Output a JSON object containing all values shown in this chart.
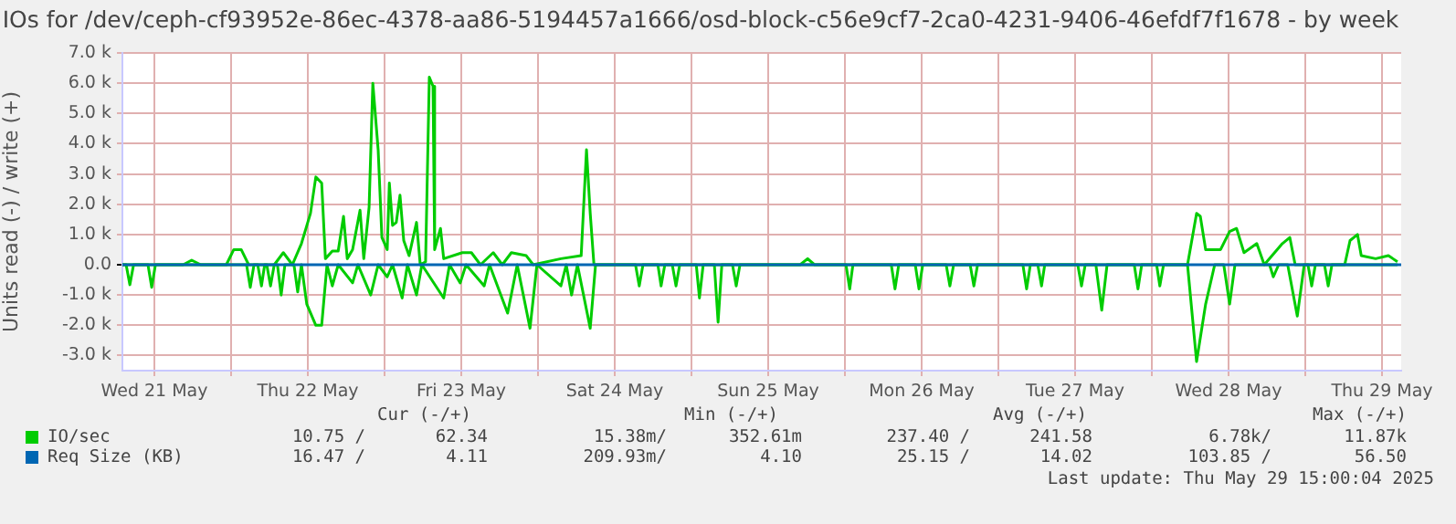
{
  "chart_data": {
    "type": "line",
    "title": "IOs for /dev/ceph-cf93952e-86ec-4378-aa86-5194457a1666/osd-block-c56e9cf7-2ca0-4231-9406-46efdf7f1678 - by week",
    "ylabel": "Units read (-) / write (+)",
    "xlim": [
      "2025-05-21T07:00",
      "2025-05-29T15:00"
    ],
    "xticks": [
      {
        "value": "2025-05-21T12:00",
        "label": "Wed 21 May"
      },
      {
        "value": "2025-05-22T00:00",
        "label": null
      },
      {
        "value": "2025-05-22T12:00",
        "label": "Thu 22 May"
      },
      {
        "value": "2025-05-23T00:00",
        "label": null
      },
      {
        "value": "2025-05-23T12:00",
        "label": "Fri 23 May"
      },
      {
        "value": "2025-05-24T00:00",
        "label": null
      },
      {
        "value": "2025-05-24T12:00",
        "label": "Sat 24 May"
      },
      {
        "value": "2025-05-25T00:00",
        "label": null
      },
      {
        "value": "2025-05-25T12:00",
        "label": "Sun 25 May"
      },
      {
        "value": "2025-05-26T00:00",
        "label": null
      },
      {
        "value": "2025-05-26T12:00",
        "label": "Mon 26 May"
      },
      {
        "value": "2025-05-27T00:00",
        "label": null
      },
      {
        "value": "2025-05-27T12:00",
        "label": "Tue 27 May"
      },
      {
        "value": "2025-05-28T00:00",
        "label": null
      },
      {
        "value": "2025-05-28T12:00",
        "label": "Wed 28 May"
      },
      {
        "value": "2025-05-29T00:00",
        "label": null
      },
      {
        "value": "2025-05-29T12:00",
        "label": "Thu 29 May"
      }
    ],
    "ylim": [
      -3500,
      7000
    ],
    "yticks": [
      {
        "value": -3000,
        "label": "-3.0 k"
      },
      {
        "value": -2000,
        "label": "-2.0 k"
      },
      {
        "value": -1000,
        "label": "-1.0 k"
      },
      {
        "value": 0,
        "label": "0.0"
      },
      {
        "value": 1000,
        "label": "1.0 k"
      },
      {
        "value": 2000,
        "label": "2.0 k"
      },
      {
        "value": 3000,
        "label": "3.0 k"
      },
      {
        "value": 4000,
        "label": "4.0 k"
      },
      {
        "value": 5000,
        "label": "5.0 k"
      },
      {
        "value": 6000,
        "label": "6.0 k"
      },
      {
        "value": 7000,
        "label": "7.0 k"
      }
    ],
    "grid": true,
    "legend": "bottom",
    "marker": "none",
    "line_style": "solid",
    "series": [
      {
        "name": "IO/sec",
        "color": "#00cc00",
        "x": [
          "2025-05-21T07:00",
          "2025-05-21T16:30",
          "2025-05-21T17:50",
          "2025-05-21T19:15",
          "2025-05-21T23:15",
          "2025-05-22T00:25",
          "2025-05-22T01:35",
          "2025-05-22T02:45",
          "2025-05-22T06:45",
          "2025-05-22T08:10",
          "2025-05-22T09:35",
          "2025-05-22T11:00",
          "2025-05-22T12:25",
          "2025-05-22T13:15",
          "2025-05-22T14:10",
          "2025-05-22T14:45",
          "2025-05-22T15:50",
          "2025-05-22T16:45",
          "2025-05-22T17:35",
          "2025-05-22T18:10",
          "2025-05-22T19:00",
          "2025-05-22T20:10",
          "2025-05-22T20:45",
          "2025-05-22T21:35",
          "2025-05-22T22:10",
          "2025-05-22T23:00",
          "2025-05-22T23:35",
          "2025-05-23T00:25",
          "2025-05-23T00:45",
          "2025-05-23T01:15",
          "2025-05-23T01:50",
          "2025-05-23T02:25",
          "2025-05-23T03:00",
          "2025-05-23T03:50",
          "2025-05-23T05:00",
          "2025-05-23T05:35",
          "2025-05-23T06:25",
          "2025-05-23T07:00",
          "2025-05-23T07:35",
          "2025-05-23T07:50",
          "2025-05-23T08:45",
          "2025-05-23T09:15",
          "2025-05-23T12:10",
          "2025-05-23T13:35",
          "2025-05-23T15:00",
          "2025-05-23T17:00",
          "2025-05-23T18:25",
          "2025-05-23T19:50",
          "2025-05-23T22:10",
          "2025-05-23T23:15",
          "2025-05-24T03:35",
          "2025-05-24T06:45",
          "2025-05-24T07:35",
          "2025-05-24T08:10",
          "2025-05-24T08:45",
          "2025-05-25T17:00",
          "2025-05-25T18:10",
          "2025-05-25T19:15",
          "2025-05-28T05:35",
          "2025-05-28T07:00",
          "2025-05-28T07:35",
          "2025-05-28T08:25",
          "2025-05-28T10:45",
          "2025-05-28T12:10",
          "2025-05-28T13:15",
          "2025-05-28T14:25",
          "2025-05-28T16:25",
          "2025-05-28T17:35",
          "2025-05-28T20:25",
          "2025-05-28T21:35",
          "2025-05-28T22:25",
          "2025-05-29T06:10",
          "2025-05-29T07:00",
          "2025-05-29T08:10",
          "2025-05-29T08:45",
          "2025-05-29T11:00",
          "2025-05-29T13:00",
          "2025-05-29T14:25"
        ],
        "values": [
          0,
          0,
          150,
          0,
          0,
          500,
          500,
          0,
          0,
          400,
          0,
          700,
          1700,
          2900,
          2700,
          200,
          450,
          450,
          1600,
          200,
          500,
          1800,
          200,
          1900,
          6000,
          3800,
          900,
          500,
          2700,
          1300,
          1400,
          2300,
          800,
          300,
          1400,
          0,
          100,
          6200,
          5900,
          500,
          1200,
          200,
          400,
          400,
          0,
          400,
          0,
          400,
          300,
          0,
          200,
          300,
          3800,
          1700,
          0,
          0,
          200,
          0,
          0,
          1700,
          1600,
          500,
          500,
          1100,
          1200,
          400,
          700,
          0,
          700,
          900,
          0,
          0,
          800,
          1000,
          300,
          200,
          300,
          100
        ]
      },
      {
        "color": "#00cc00",
        "x": [
          "2025-05-21T07:00",
          "2025-05-21T07:35",
          "2025-05-21T08:10",
          "2025-05-21T08:45",
          "2025-05-21T11:00",
          "2025-05-21T11:35",
          "2025-05-21T12:10",
          "2025-05-22T02:25",
          "2025-05-22T03:00",
          "2025-05-22T03:35",
          "2025-05-22T04:10",
          "2025-05-22T04:45",
          "2025-05-22T05:15",
          "2025-05-22T05:35",
          "2025-05-22T06:10",
          "2025-05-22T06:45",
          "2025-05-22T07:15",
          "2025-05-22T07:50",
          "2025-05-22T08:25",
          "2025-05-22T09:50",
          "2025-05-22T10:25",
          "2025-05-22T11:00",
          "2025-05-22T11:50",
          "2025-05-22T13:15",
          "2025-05-22T14:10",
          "2025-05-22T15:00",
          "2025-05-22T15:50",
          "2025-05-22T16:45",
          "2025-05-22T19:00",
          "2025-05-22T19:50",
          "2025-05-22T21:50",
          "2025-05-22T23:00",
          "2025-05-23T00:25",
          "2025-05-23T01:15",
          "2025-05-23T02:45",
          "2025-05-23T03:35",
          "2025-05-23T05:00",
          "2025-05-23T05:50",
          "2025-05-23T09:15",
          "2025-05-23T10:10",
          "2025-05-23T11:50",
          "2025-05-23T12:45",
          "2025-05-23T15:35",
          "2025-05-23T16:25",
          "2025-05-23T19:15",
          "2025-05-23T20:45",
          "2025-05-23T22:45",
          "2025-05-23T23:50",
          "2025-05-24T03:35",
          "2025-05-24T04:25",
          "2025-05-24T05:15",
          "2025-05-24T06:10",
          "2025-05-24T08:10",
          "2025-05-24T09:00",
          "2025-05-24T15:15",
          "2025-05-24T15:50",
          "2025-05-24T16:25",
          "2025-05-24T18:45",
          "2025-05-24T19:15",
          "2025-05-24T19:50",
          "2025-05-24T21:00",
          "2025-05-24T21:35",
          "2025-05-24T22:10",
          "2025-05-25T00:45",
          "2025-05-25T01:15",
          "2025-05-25T01:50",
          "2025-05-25T03:35",
          "2025-05-25T04:10",
          "2025-05-25T04:45",
          "2025-05-25T06:25",
          "2025-05-25T07:00",
          "2025-05-25T07:35",
          "2025-05-26T00:10",
          "2025-05-26T00:45",
          "2025-05-26T01:15",
          "2025-05-26T07:15",
          "2025-05-26T07:50",
          "2025-05-26T08:25",
          "2025-05-26T11:00",
          "2025-05-26T11:35",
          "2025-05-26T12:10",
          "2025-05-26T15:50",
          "2025-05-26T16:25",
          "2025-05-26T17:00",
          "2025-05-26T19:35",
          "2025-05-26T20:10",
          "2025-05-26T20:45",
          "2025-05-27T03:50",
          "2025-05-27T04:25",
          "2025-05-27T05:00",
          "2025-05-27T06:10",
          "2025-05-27T06:45",
          "2025-05-27T07:15",
          "2025-05-27T12:25",
          "2025-05-27T13:00",
          "2025-05-27T13:35",
          "2025-05-27T15:15",
          "2025-05-27T16:10",
          "2025-05-27T17:00",
          "2025-05-27T21:15",
          "2025-05-27T21:50",
          "2025-05-27T22:25",
          "2025-05-28T00:45",
          "2025-05-28T01:15",
          "2025-05-28T01:50",
          "2025-05-28T05:35",
          "2025-05-28T07:00",
          "2025-05-28T08:25",
          "2025-05-28T09:50",
          "2025-05-28T11:15",
          "2025-05-28T12:10",
          "2025-05-28T13:00",
          "2025-05-28T18:25",
          "2025-05-28T19:00",
          "2025-05-28T19:50",
          "2025-05-28T21:15",
          "2025-05-28T22:45",
          "2025-05-28T23:50",
          "2025-05-29T00:25",
          "2025-05-29T01:00",
          "2025-05-29T01:35",
          "2025-05-29T03:00",
          "2025-05-29T03:35",
          "2025-05-29T04:10",
          "2025-05-29T14:25"
        ],
        "values": [
          0,
          0,
          -660,
          0,
          0,
          -750,
          0,
          0,
          -750,
          0,
          0,
          -700,
          0,
          0,
          -700,
          0,
          0,
          -1000,
          0,
          0,
          -900,
          0,
          -1300,
          -2000,
          -2000,
          0,
          -700,
          0,
          -600,
          0,
          -1000,
          0,
          -400,
          0,
          -1100,
          0,
          -1000,
          0,
          -1100,
          0,
          -600,
          0,
          -700,
          0,
          -1600,
          0,
          -2100,
          0,
          -700,
          0,
          -1000,
          0,
          -2100,
          0,
          0,
          -700,
          0,
          0,
          -700,
          0,
          0,
          -700,
          0,
          0,
          -1100,
          0,
          0,
          -1900,
          0,
          0,
          -700,
          0,
          0,
          -800,
          0,
          0,
          -800,
          0,
          0,
          -800,
          0,
          0,
          -700,
          0,
          0,
          -700,
          0,
          0,
          -800,
          0,
          0,
          -700,
          0,
          0,
          -700,
          0,
          0,
          -1500,
          0,
          0,
          -800,
          0,
          0,
          -700,
          0,
          0,
          -3200,
          -1300,
          0,
          0,
          -1300,
          0,
          0,
          -400,
          0,
          0,
          -1700,
          0,
          0,
          -700,
          0,
          0,
          -700,
          0,
          0
        ]
      },
      {
        "name": "Req Size (KB)",
        "color": "#0066b3",
        "x": [
          "2025-05-21T07:00",
          "2025-05-29T15:00"
        ],
        "values": [
          0,
          0
        ]
      }
    ],
    "annotations": [
      "Cur (-/+)",
      "Min (-/+)",
      "Avg (-/+)",
      "Max (-/+)",
      "10.75 /",
      "62.34",
      "15.38m/",
      "352.61m",
      "237.40 /",
      "241.58",
      "6.78k/",
      "11.87k",
      "16.47 /",
      "4.11",
      "209.93m/",
      "4.10",
      "25.15 /",
      "14.02",
      "103.85 /",
      "56.50",
      "Last update: Thu May 29 15:00:04 2025"
    ]
  }
}
